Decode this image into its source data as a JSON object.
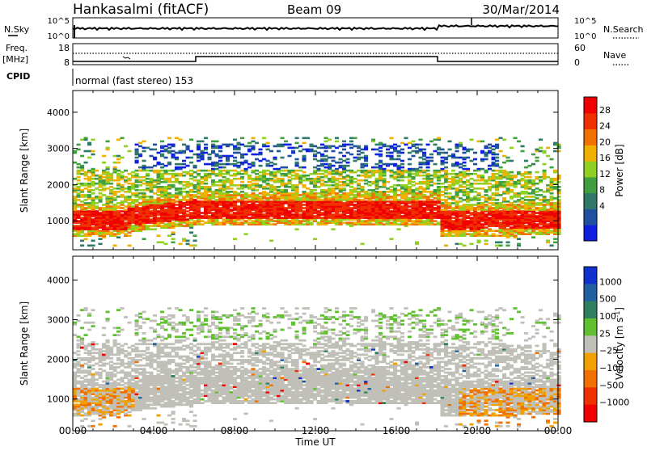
{
  "header": {
    "radar": "Hankasalmi (fitACF)",
    "beam": "Beam 09",
    "date": "30/Mar/2014"
  },
  "top_panels": {
    "nsky_label": "N.Sky",
    "nsearch_label": "N.Search",
    "noise_ticks": [
      "10^5",
      "10^0"
    ],
    "freq_label_1": "Freq.",
    "freq_label_2": "[MHz]",
    "freq_ticks": [
      "18",
      "8"
    ],
    "nave_label": "Nave",
    "nave_ticks": [
      "60",
      "0"
    ],
    "cpid_label": "CPID",
    "cpid_text": "normal (fast stereo) 153"
  },
  "colors": {
    "power": [
      "#1020e0",
      "#2050a0",
      "#307868",
      "#40a040",
      "#90d020",
      "#f0b000",
      "#f07000",
      "#f03000",
      "#f00000"
    ],
    "velocity": [
      "#1030d0",
      "#2060a0",
      "#308060",
      "#60c030",
      "#c0c0b8",
      "#f0a000",
      "#f07000",
      "#f03000",
      "#f00000"
    ],
    "ground": "#c0c0b8"
  },
  "chart_data": [
    {
      "type": "heatmap",
      "name": "power",
      "xlabel": "Time UT",
      "ylabel": "Slant Range [km]",
      "xlim": [
        0,
        24
      ],
      "ylim": [
        200,
        4600
      ],
      "x_ticks": [
        "00:00",
        "04:00",
        "08:00",
        "12:00",
        "16:00",
        "20:00",
        "00:00"
      ],
      "y_ticks": [
        1000,
        2000,
        3000,
        4000
      ],
      "colorbar": {
        "label": "Power [dB]",
        "ticks": [
          "28",
          "24",
          "20",
          "16",
          "12",
          "8",
          "4"
        ],
        "range": [
          0,
          32
        ]
      }
    },
    {
      "type": "heatmap",
      "name": "velocity",
      "xlabel": "Time UT",
      "ylabel": "Slant Range [km]",
      "xlim": [
        0,
        24
      ],
      "ylim": [
        200,
        4600
      ],
      "x_ticks": [
        "00:00",
        "04:00",
        "08:00",
        "12:00",
        "16:00",
        "20:00",
        "00:00"
      ],
      "y_ticks": [
        1000,
        2000,
        3000,
        4000
      ],
      "colorbar": {
        "label": "Velocity [m s",
        "label_sup": "-1",
        "ticks": [
          "1000",
          "500",
          "100",
          "25",
          "−25",
          "−100",
          "−500",
          "−1000"
        ]
      }
    }
  ]
}
